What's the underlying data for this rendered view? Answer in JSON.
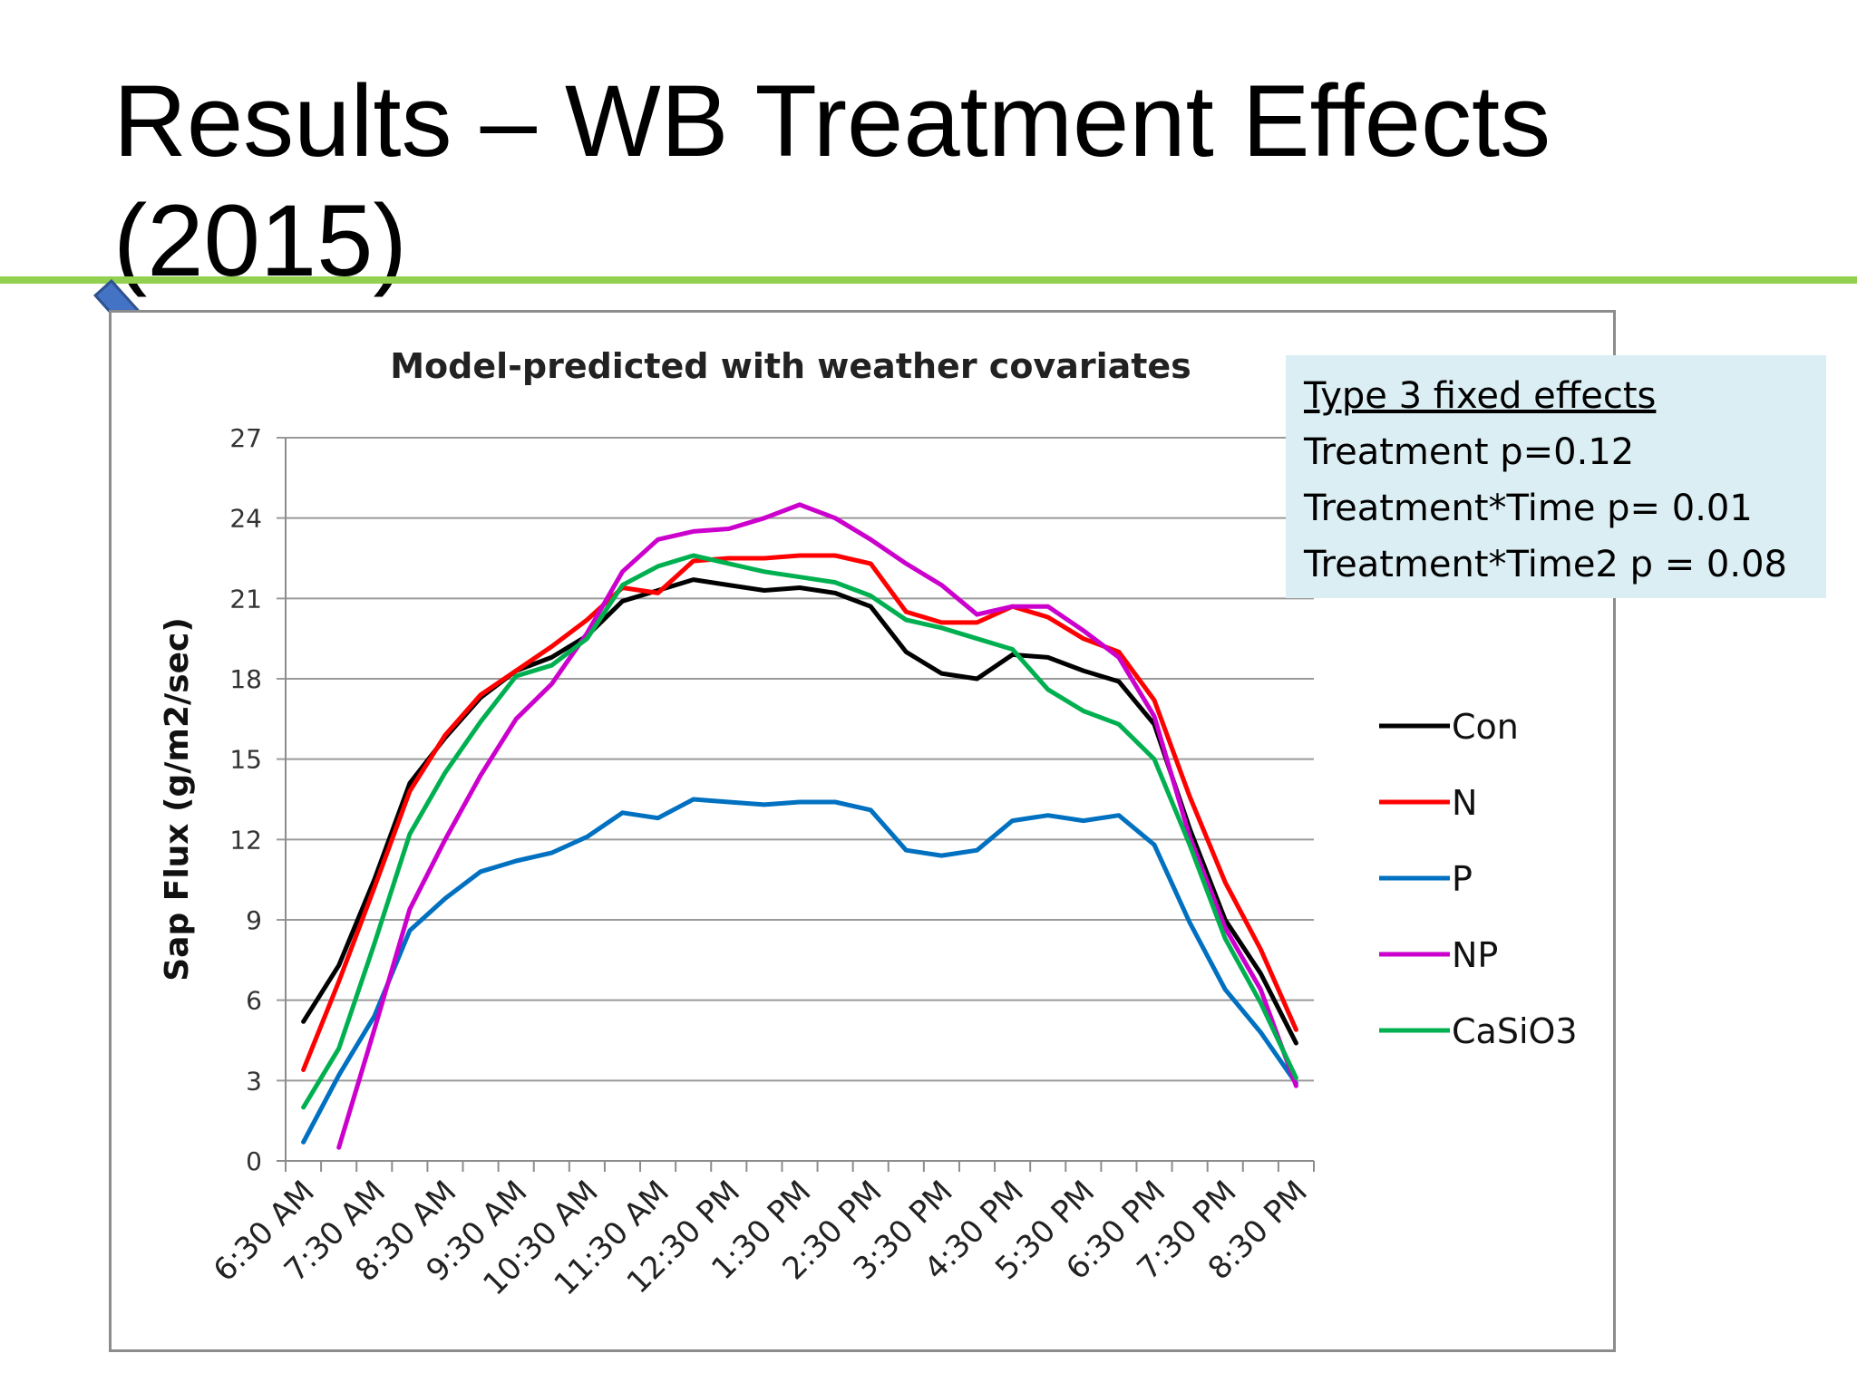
{
  "slide": {
    "title_line1": "Results – WB Treatment Effects",
    "title_line2": "(2015)",
    "accent_color": "#92d050",
    "arrow_color": "#4472c4"
  },
  "stats_box": {
    "background": "#dbeef3",
    "header": "Type 3 fixed effects",
    "lines": [
      "Treatment  p=0.12",
      "Treatment*Time  p= 0.01",
      "Treatment*Time2 p = 0.08"
    ]
  },
  "chart_data": {
    "type": "line",
    "title": "Model-predicted with weather covariates",
    "xlabel": "",
    "ylabel": "Sap Flux (g/m2/sec)",
    "ylim": [
      0,
      27
    ],
    "yticks": [
      0,
      3,
      6,
      9,
      12,
      15,
      18,
      21,
      24,
      27
    ],
    "grid": true,
    "legend_position": "right",
    "x": [
      "6:30 AM",
      "7:00 AM",
      "7:30 AM",
      "8:00 AM",
      "8:30 AM",
      "9:00 AM",
      "9:30 AM",
      "10:00 AM",
      "10:30 AM",
      "11:00 AM",
      "11:30 AM",
      "12:00 PM",
      "12:30 PM",
      "1:00 PM",
      "1:30 PM",
      "2:00 PM",
      "2:30 PM",
      "3:00 PM",
      "3:30 PM",
      "4:00 PM",
      "4:30 PM",
      "5:00 PM",
      "5:30 PM",
      "6:00 PM",
      "6:30 PM",
      "7:00 PM",
      "7:30 PM",
      "8:00 PM",
      "8:30 PM"
    ],
    "tick_labels": [
      "6:30 AM",
      "7:30 AM",
      "8:30 AM",
      "9:30 AM",
      "10:30 AM",
      "11:30 AM",
      "12:30 PM",
      "1:30 PM",
      "2:30 PM",
      "3:30 PM",
      "4:30 PM",
      "5:30 PM",
      "6:30 PM",
      "7:30 PM",
      "8:30 PM"
    ],
    "series": [
      {
        "name": "Con",
        "color": "#000000",
        "values": [
          5.2,
          7.3,
          10.5,
          14.1,
          15.8,
          17.3,
          18.3,
          18.8,
          19.6,
          20.9,
          21.3,
          21.7,
          21.5,
          21.3,
          21.4,
          21.2,
          20.7,
          19.0,
          18.2,
          18.0,
          18.9,
          18.8,
          18.3,
          17.9,
          16.3,
          12.4,
          9.0,
          7.0,
          4.4
        ]
      },
      {
        "name": "N",
        "color": "#ff0000",
        "values": [
          3.4,
          6.7,
          10.2,
          13.8,
          15.9,
          17.4,
          18.3,
          19.2,
          20.2,
          21.4,
          21.2,
          22.4,
          22.5,
          22.5,
          22.6,
          22.6,
          22.3,
          20.5,
          20.1,
          20.1,
          20.7,
          20.3,
          19.5,
          19.0,
          17.2,
          13.6,
          10.4,
          7.9,
          4.9
        ]
      },
      {
        "name": "P",
        "color": "#0070c0",
        "values": [
          0.7,
          3.2,
          5.4,
          8.6,
          9.8,
          10.8,
          11.2,
          11.5,
          12.1,
          13.0,
          12.8,
          13.5,
          13.4,
          13.3,
          13.4,
          13.4,
          13.1,
          11.6,
          11.4,
          11.6,
          12.7,
          12.9,
          12.7,
          12.9,
          11.8,
          8.9,
          6.4,
          4.8,
          2.9
        ]
      },
      {
        "name": "NP",
        "color": "#cc00cc",
        "values": [
          null,
          0.5,
          4.9,
          9.4,
          12.0,
          14.4,
          16.5,
          17.8,
          19.7,
          22.0,
          23.2,
          23.5,
          23.6,
          24.0,
          24.5,
          24.0,
          23.2,
          22.3,
          21.5,
          20.4,
          20.7,
          20.7,
          19.8,
          18.8,
          16.6,
          12.1,
          8.7,
          6.4,
          2.8
        ]
      },
      {
        "name": "CaSiO3",
        "color": "#00b050",
        "values": [
          2.0,
          4.2,
          8.1,
          12.2,
          14.5,
          16.4,
          18.1,
          18.5,
          19.5,
          21.5,
          22.2,
          22.6,
          22.3,
          22.0,
          21.8,
          21.6,
          21.1,
          20.2,
          19.9,
          19.5,
          19.1,
          17.6,
          16.8,
          16.3,
          15.0,
          11.8,
          8.3,
          5.9,
          3.1
        ]
      }
    ]
  }
}
